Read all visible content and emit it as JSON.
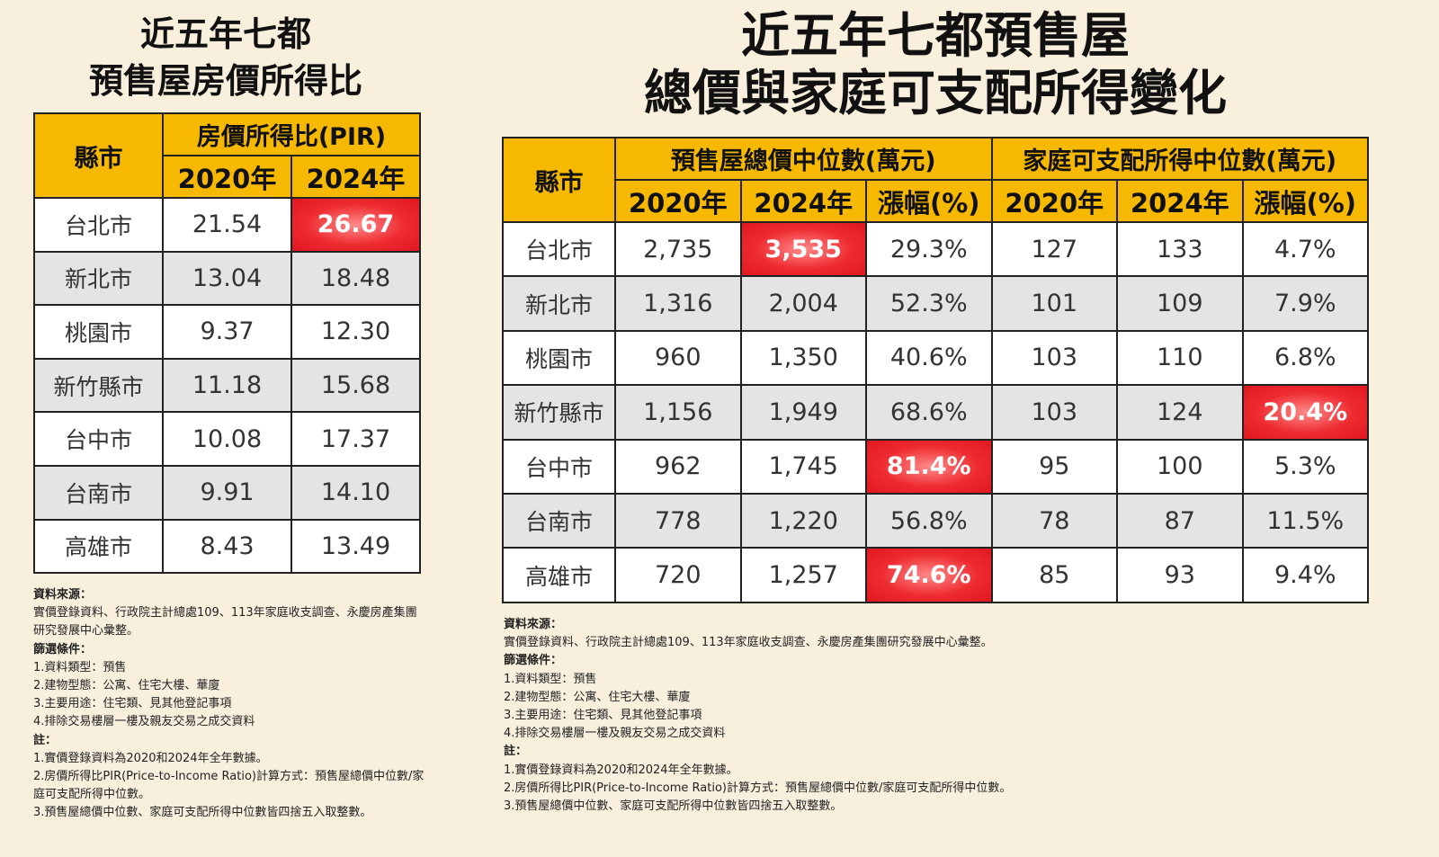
{
  "left": {
    "title": [
      "近五年七都",
      "預售屋房價所得比"
    ],
    "header": {
      "city": "縣市",
      "group": "房價所得比(PIR)",
      "cols": [
        "2020年",
        "2024年"
      ]
    },
    "rows": [
      {
        "city": "台北市",
        "values": [
          "21.54",
          "26.67"
        ]
      },
      {
        "city": "新北市",
        "values": [
          "13.04",
          "18.48"
        ]
      },
      {
        "city": "桃園市",
        "values": [
          "9.37",
          "12.30"
        ]
      },
      {
        "city": "新竹縣市",
        "values": [
          "11.18",
          "15.68"
        ]
      },
      {
        "city": "台中市",
        "values": [
          "10.08",
          "17.37"
        ]
      },
      {
        "city": "台南市",
        "values": [
          "9.91",
          "14.10"
        ]
      },
      {
        "city": "高雄市",
        "values": [
          "8.43",
          "13.49"
        ]
      }
    ],
    "notes": [
      {
        "heading": "資料來源：",
        "lines": [
          "實價登錄資料、行政院主計總處109、113年家庭收支調查、永慶房產集團研究發展中心彙整。"
        ]
      },
      {
        "heading": "篩選條件：",
        "lines": [
          "1.資料類型：預售",
          "2.建物型態：公寓、住宅大樓、華廈",
          "3.主要用途：住宅類、見其他登記事項",
          "4.排除交易樓層一樓及親友交易之成交資料"
        ]
      },
      {
        "heading": "註：",
        "lines": [
          "1.實價登錄資料為2020和2024年全年數據。",
          "2.房價所得比PIR(Price-to-Income Ratio)計算方式：預售屋總價中位數/家庭可支配所得中位數。",
          "3.預售屋總價中位數、家庭可支配所得中位數皆四捨五入取整數。"
        ]
      }
    ]
  },
  "right": {
    "title": [
      "近五年七都預售屋",
      "總價與家庭可支配所得變化"
    ],
    "header": {
      "city": "縣市",
      "groups": [
        {
          "label": "預售屋總價中位數(萬元)",
          "cols": [
            "2020年",
            "2024年",
            "漲幅(%)"
          ]
        },
        {
          "label": "家庭可支配所得中位數(萬元)",
          "cols": [
            "2020年",
            "2024年",
            "漲幅(%)"
          ]
        }
      ]
    },
    "rows": [
      {
        "city": "台北市",
        "values": [
          "2,735",
          "3,535",
          "29.3%",
          "127",
          "133",
          "4.7%"
        ]
      },
      {
        "city": "新北市",
        "values": [
          "1,316",
          "2,004",
          "52.3%",
          "101",
          "109",
          "7.9%"
        ]
      },
      {
        "city": "桃園市",
        "values": [
          "960",
          "1,350",
          "40.6%",
          "103",
          "110",
          "6.8%"
        ]
      },
      {
        "city": "新竹縣市",
        "values": [
          "1,156",
          "1,949",
          "68.6%",
          "103",
          "124",
          "20.4%"
        ]
      },
      {
        "city": "台中市",
        "values": [
          "962",
          "1,745",
          "81.4%",
          "95",
          "100",
          "5.3%"
        ]
      },
      {
        "city": "台南市",
        "values": [
          "778",
          "1,220",
          "56.8%",
          "78",
          "87",
          "11.5%"
        ]
      },
      {
        "city": "高雄市",
        "values": [
          "720",
          "1,257",
          "74.6%",
          "85",
          "93",
          "9.4%"
        ]
      }
    ],
    "notes": [
      {
        "heading": "資料來源：",
        "lines": [
          "實價登錄資料、行政院主計總處109、113年家庭收支調查、永慶房產集團研究發展中心彙整。"
        ]
      },
      {
        "heading": "篩選條件：",
        "lines": [
          "1.資料類型：預售",
          "2.建物型態：公寓、住宅大樓、華廈",
          "3.主要用途：住宅類、見其他登記事項",
          "4.排除交易樓層一樓及親友交易之成交資料"
        ]
      },
      {
        "heading": "註：",
        "lines": [
          "1.實價登錄資料為2020和2024年全年數據。",
          "2.房價所得比PIR(Price-to-Income Ratio)計算方式：預售屋總價中位數/家庭可支配所得中位數。",
          "3.預售屋總價中位數、家庭可支配所得中位數皆四捨五入取整數。"
        ]
      }
    ]
  }
}
